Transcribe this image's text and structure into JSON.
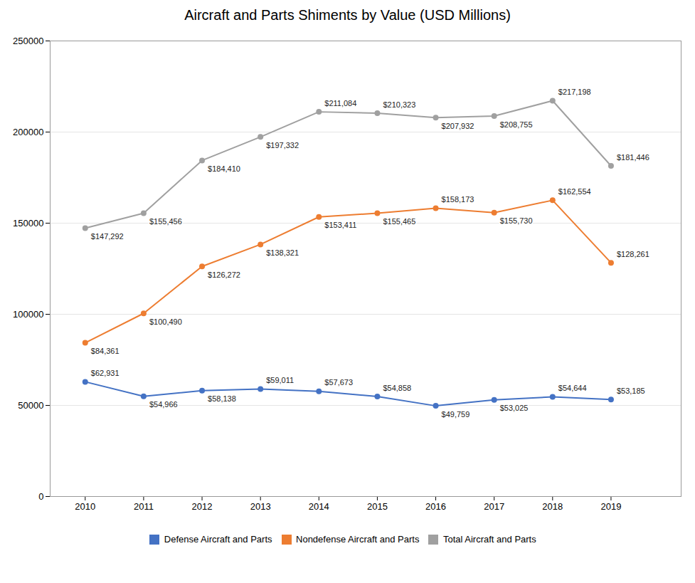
{
  "chart_data": {
    "type": "line",
    "title": "Aircraft and Parts Shiments by Value (USD Millions)",
    "x": [
      2010,
      2011,
      2012,
      2013,
      2014,
      2015,
      2016,
      2017,
      2018,
      2019
    ],
    "series": [
      {
        "name": "Defense Aircraft and Parts",
        "color": "#4472c4",
        "values": [
          62931,
          54966,
          58138,
          59011,
          57673,
          54858,
          49759,
          53025,
          54644,
          53185
        ],
        "value_labels": [
          "$62,931",
          "$54,966",
          "$58,138",
          "$59,011",
          "$57,673",
          "$54,858",
          "$49,759",
          "$53,025",
          "$54,644",
          "$53,185"
        ]
      },
      {
        "name": "Nondefense Aircraft and Parts",
        "color": "#ed7d31",
        "values": [
          84361,
          100490,
          126272,
          138321,
          153411,
          155465,
          158173,
          155730,
          162554,
          128261
        ],
        "value_labels": [
          "$84,361",
          "$100,490",
          "$126,272",
          "$138,321",
          "$153,411",
          "$155,465",
          "$158,173",
          "$155,730",
          "$162,554",
          "$128,261"
        ]
      },
      {
        "name": "Total Aircraft and Parts",
        "color": "#a0a0a0",
        "values": [
          147292,
          155456,
          184410,
          197332,
          211084,
          210323,
          207932,
          208755,
          217198,
          181446
        ],
        "value_labels": [
          "$147,292",
          "$155,456",
          "$184,410",
          "$197,332",
          "$211,084",
          "$210,323",
          "$207,932",
          "$208,755",
          "$217,198",
          "$181,446"
        ]
      }
    ],
    "xlim": [
      2009.4,
      2020.2
    ],
    "xticks": [
      2010,
      2011,
      2012,
      2013,
      2014,
      2015,
      2016,
      2017,
      2018,
      2019
    ],
    "ylim": [
      0,
      250000
    ],
    "yticks": [
      0,
      50000,
      100000,
      150000,
      200000,
      250000
    ],
    "grid": true,
    "legend": "bottom",
    "marker": "circle",
    "data_labels": true
  }
}
